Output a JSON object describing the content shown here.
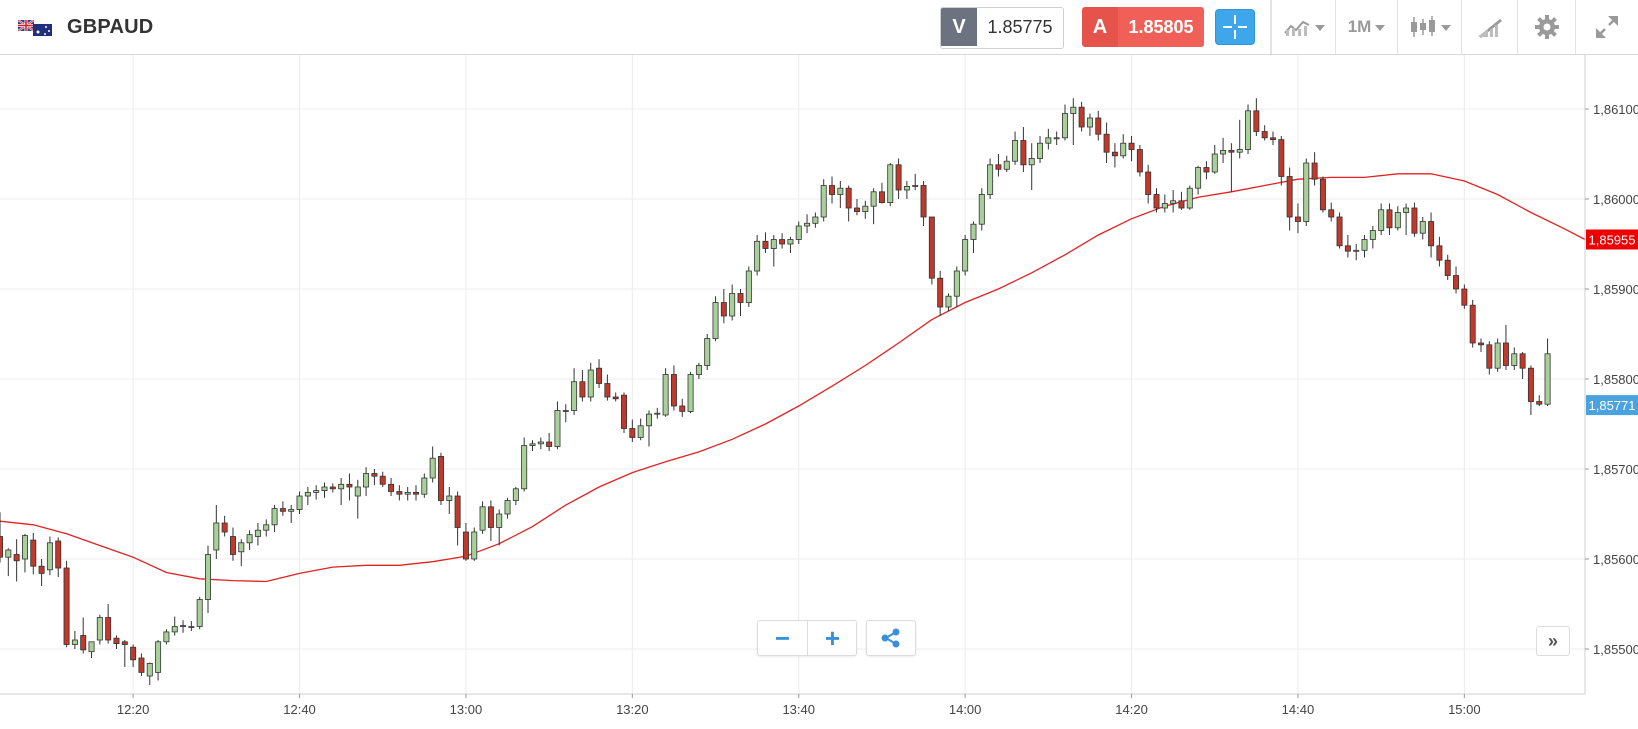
{
  "header": {
    "symbol": "GBPAUD",
    "flag_icon": "gb-au-flag-icon",
    "bid_label": "V",
    "bid_value": "1.85775",
    "ask_label": "A",
    "ask_value": "1.85805",
    "timeframe_label": "1M",
    "colors": {
      "bid": "#6d7280",
      "ask": "#e5534b",
      "crosshair": "#3ea6ea"
    }
  },
  "toolbar": {
    "icons": [
      "crosshair-icon",
      "indicators-icon",
      "chart-type-candles-icon",
      "drawing-tools-icon",
      "gear-icon",
      "fullscreen-icon"
    ]
  },
  "controls": {
    "zoom_out_label": "−",
    "zoom_in_label": "+",
    "share_icon": "share-icon",
    "scroll_latest_label": "»"
  },
  "chart_data": {
    "type": "candlestick",
    "symbol": "GBPAUD",
    "timeframe": "1M",
    "y_ticks": [
      1.855,
      1.856,
      1.857,
      1.858,
      1.859,
      1.86,
      1.861
    ],
    "y_tick_labels": [
      "1,85500",
      "1,85600",
      "1,85700",
      "1,85800",
      "1,85900",
      "1,86000",
      "1,86100"
    ],
    "ylim": [
      1.8545,
      1.8616
    ],
    "x_tick_labels": [
      {
        "label": "12:20",
        "minute": 16
      },
      {
        "label": "12:40",
        "minute": 36
      },
      {
        "label": "13:00",
        "minute": 56
      },
      {
        "label": "13:20",
        "minute": 76
      },
      {
        "label": "13:40",
        "minute": 96
      },
      {
        "label": "14:00",
        "minute": 116
      },
      {
        "label": "14:20",
        "minute": 136
      },
      {
        "label": "14:40",
        "minute": 156
      },
      {
        "label": "15:00",
        "minute": 176
      }
    ],
    "x_range": [
      0,
      190.5
    ],
    "grid": true,
    "colors": {
      "up": "#a8d19a",
      "down": "#c0392b",
      "outline": "#333333",
      "ma": "#e22222",
      "grid": "#ececec"
    },
    "candles": [
      [
        1.85625,
        1.85652,
        1.85596,
        1.85602
      ],
      [
        1.85602,
        1.85612,
        1.85581,
        1.8561
      ],
      [
        1.85605,
        1.85622,
        1.85575,
        1.85598
      ],
      [
        1.856,
        1.85628,
        1.85585,
        1.85626
      ],
      [
        1.85621,
        1.85629,
        1.85583,
        1.85592
      ],
      [
        1.85592,
        1.856,
        1.8557,
        1.85584
      ],
      [
        1.85588,
        1.85625,
        1.85582,
        1.85618
      ],
      [
        1.8562,
        1.85624,
        1.8558,
        1.8559
      ],
      [
        1.8559,
        1.85598,
        1.85502,
        1.85505
      ],
      [
        1.85505,
        1.8552,
        1.855,
        1.8551
      ],
      [
        1.85515,
        1.85535,
        1.85495,
        1.85499
      ],
      [
        1.85497,
        1.85505,
        1.8549,
        1.85508
      ],
      [
        1.8551,
        1.85538,
        1.85505,
        1.85535
      ],
      [
        1.85535,
        1.8555,
        1.85506,
        1.8551
      ],
      [
        1.85512,
        1.85515,
        1.855,
        1.85506
      ],
      [
        1.85508,
        1.8551,
        1.8548,
        1.85505
      ],
      [
        1.85502,
        1.85505,
        1.8548,
        1.85488
      ],
      [
        1.8549,
        1.85495,
        1.8547,
        1.85474
      ],
      [
        1.8547,
        1.85485,
        1.8546,
        1.85484
      ],
      [
        1.85474,
        1.8551,
        1.85465,
        1.85508
      ],
      [
        1.85508,
        1.85522,
        1.85505,
        1.85519
      ],
      [
        1.85519,
        1.85536,
        1.85515,
        1.85525
      ],
      [
        1.85525,
        1.85532,
        1.85518,
        1.85526
      ],
      [
        1.85524,
        1.85531,
        1.8552,
        1.85525
      ],
      [
        1.85525,
        1.85558,
        1.85522,
        1.85555
      ],
      [
        1.85555,
        1.85615,
        1.8554,
        1.85605
      ],
      [
        1.8561,
        1.8566,
        1.856,
        1.8564
      ],
      [
        1.8564,
        1.85648,
        1.85625,
        1.8563
      ],
      [
        1.85625,
        1.85635,
        1.85598,
        1.85605
      ],
      [
        1.85608,
        1.85622,
        1.85592,
        1.85618
      ],
      [
        1.85618,
        1.85632,
        1.8561,
        1.85627
      ],
      [
        1.85625,
        1.8564,
        1.85615,
        1.85632
      ],
      [
        1.85632,
        1.85644,
        1.85625,
        1.85638
      ],
      [
        1.85638,
        1.8566,
        1.8563,
        1.85656
      ],
      [
        1.85656,
        1.85664,
        1.85648,
        1.85653
      ],
      [
        1.85653,
        1.8566,
        1.8564,
        1.85655
      ],
      [
        1.85655,
        1.85675,
        1.8565,
        1.8567
      ],
      [
        1.8567,
        1.8568,
        1.8566,
        1.85674
      ],
      [
        1.85674,
        1.85682,
        1.85666,
        1.85676
      ],
      [
        1.85676,
        1.85685,
        1.85668,
        1.8568
      ],
      [
        1.8568,
        1.85684,
        1.85674,
        1.85678
      ],
      [
        1.85678,
        1.8569,
        1.8566,
        1.85683
      ],
      [
        1.85683,
        1.85695,
        1.85665,
        1.8568
      ],
      [
        1.8567,
        1.85688,
        1.85645,
        1.8568
      ],
      [
        1.8568,
        1.85702,
        1.8567,
        1.85695
      ],
      [
        1.85695,
        1.857,
        1.85682,
        1.85692
      ],
      [
        1.85692,
        1.85697,
        1.8568,
        1.85683
      ],
      [
        1.85683,
        1.8569,
        1.8567,
        1.85675
      ],
      [
        1.85675,
        1.85682,
        1.85665,
        1.85672
      ],
      [
        1.85672,
        1.8568,
        1.85665,
        1.85674
      ],
      [
        1.85674,
        1.85682,
        1.85665,
        1.85672
      ],
      [
        1.85672,
        1.85695,
        1.85668,
        1.8569
      ],
      [
        1.8569,
        1.85725,
        1.85685,
        1.85712
      ],
      [
        1.85714,
        1.85718,
        1.8566,
        1.85665
      ],
      [
        1.85665,
        1.8568,
        1.8565,
        1.8567
      ],
      [
        1.8567,
        1.85675,
        1.85615,
        1.85635
      ],
      [
        1.8563,
        1.8564,
        1.85598,
        1.856
      ],
      [
        1.856,
        1.85635,
        1.85598,
        1.8563
      ],
      [
        1.85632,
        1.85664,
        1.85628,
        1.85658
      ],
      [
        1.85658,
        1.85665,
        1.8562,
        1.85635
      ],
      [
        1.85635,
        1.85655,
        1.85615,
        1.8565
      ],
      [
        1.8565,
        1.85668,
        1.85645,
        1.85665
      ],
      [
        1.85665,
        1.8568,
        1.8566,
        1.85678
      ],
      [
        1.85678,
        1.85735,
        1.85675,
        1.85726
      ],
      [
        1.85726,
        1.85732,
        1.8572,
        1.85728
      ],
      [
        1.85728,
        1.85735,
        1.85722,
        1.8573
      ],
      [
        1.8573,
        1.8574,
        1.8572,
        1.85725
      ],
      [
        1.85725,
        1.85775,
        1.85722,
        1.85765
      ],
      [
        1.85765,
        1.85772,
        1.85752,
        1.85765
      ],
      [
        1.85765,
        1.85812,
        1.8576,
        1.85797
      ],
      [
        1.85797,
        1.8581,
        1.85775,
        1.8578
      ],
      [
        1.8578,
        1.85818,
        1.85775,
        1.8581
      ],
      [
        1.85812,
        1.85822,
        1.8579,
        1.85795
      ],
      [
        1.85795,
        1.85805,
        1.85776,
        1.8578
      ],
      [
        1.8578,
        1.85785,
        1.85775,
        1.85778
      ],
      [
        1.85782,
        1.85785,
        1.8574,
        1.85745
      ],
      [
        1.85745,
        1.85755,
        1.8573,
        1.85735
      ],
      [
        1.85735,
        1.85756,
        1.85732,
        1.85748
      ],
      [
        1.85748,
        1.85765,
        1.85725,
        1.85761
      ],
      [
        1.85761,
        1.85768,
        1.85756,
        1.85762
      ],
      [
        1.8576,
        1.85812,
        1.85758,
        1.85805
      ],
      [
        1.85805,
        1.85815,
        1.85765,
        1.8577
      ],
      [
        1.8577,
        1.85778,
        1.85758,
        1.85764
      ],
      [
        1.85764,
        1.85808,
        1.85762,
        1.85805
      ],
      [
        1.85805,
        1.85818,
        1.858,
        1.85815
      ],
      [
        1.85815,
        1.8585,
        1.8581,
        1.85845
      ],
      [
        1.85845,
        1.85892,
        1.85842,
        1.85885
      ],
      [
        1.85885,
        1.859,
        1.85862,
        1.8587
      ],
      [
        1.8587,
        1.85905,
        1.85865,
        1.85895
      ],
      [
        1.85895,
        1.859,
        1.8587,
        1.85885
      ],
      [
        1.85885,
        1.85925,
        1.8588,
        1.8592
      ],
      [
        1.8592,
        1.8596,
        1.85915,
        1.85953
      ],
      [
        1.85953,
        1.85963,
        1.8594,
        1.85945
      ],
      [
        1.85945,
        1.8596,
        1.85925,
        1.85955
      ],
      [
        1.85955,
        1.85962,
        1.85945,
        1.8595
      ],
      [
        1.8595,
        1.85958,
        1.8594,
        1.85955
      ],
      [
        1.85955,
        1.85975,
        1.8595,
        1.8597
      ],
      [
        1.8597,
        1.85983,
        1.85962,
        1.85973
      ],
      [
        1.85973,
        1.85985,
        1.85968,
        1.8598
      ],
      [
        1.8598,
        1.86022,
        1.85975,
        1.86015
      ],
      [
        1.86015,
        1.86025,
        1.85995,
        1.86005
      ],
      [
        1.86005,
        1.8602,
        1.8599,
        1.86012
      ],
      [
        1.86012,
        1.86015,
        1.85975,
        1.8599
      ],
      [
        1.8599,
        1.86,
        1.85982,
        1.85986
      ],
      [
        1.85986,
        1.85998,
        1.85978,
        1.85992
      ],
      [
        1.85992,
        1.86012,
        1.85972,
        1.86008
      ],
      [
        1.86008,
        1.86018,
        1.85995,
        1.85996
      ],
      [
        1.85996,
        1.8604,
        1.85992,
        1.86038
      ],
      [
        1.86038,
        1.86045,
        1.86,
        1.8601
      ],
      [
        1.8601,
        1.8602,
        1.86,
        1.86014
      ],
      [
        1.86014,
        1.86028,
        1.8601,
        1.86015
      ],
      [
        1.86015,
        1.8602,
        1.8597,
        1.8598
      ],
      [
        1.8598,
        1.85975,
        1.85905,
        1.85912
      ],
      [
        1.85912,
        1.8592,
        1.8587,
        1.8588
      ],
      [
        1.8588,
        1.85895,
        1.85875,
        1.85892
      ],
      [
        1.85892,
        1.85925,
        1.8588,
        1.8592
      ],
      [
        1.8592,
        1.8596,
        1.85915,
        1.85955
      ],
      [
        1.85955,
        1.85975,
        1.8594,
        1.85972
      ],
      [
        1.85972,
        1.86012,
        1.85965,
        1.86005
      ],
      [
        1.86005,
        1.86045,
        1.86,
        1.86038
      ],
      [
        1.86038,
        1.8605,
        1.86025,
        1.86033
      ],
      [
        1.86033,
        1.86048,
        1.8603,
        1.86042
      ],
      [
        1.86042,
        1.86075,
        1.86038,
        1.86065
      ],
      [
        1.86065,
        1.8608,
        1.8603,
        1.86038
      ],
      [
        1.86038,
        1.86062,
        1.8601,
        1.86045
      ],
      [
        1.86045,
        1.8607,
        1.8604,
        1.86062
      ],
      [
        1.86062,
        1.86078,
        1.86055,
        1.86068
      ],
      [
        1.86068,
        1.86075,
        1.8606,
        1.86068
      ],
      [
        1.86068,
        1.86105,
        1.86065,
        1.86095
      ],
      [
        1.86095,
        1.86112,
        1.8606,
        1.86102
      ],
      [
        1.86102,
        1.86108,
        1.86075,
        1.8608
      ],
      [
        1.8608,
        1.86095,
        1.8607,
        1.8609
      ],
      [
        1.8609,
        1.86098,
        1.86065,
        1.86072
      ],
      [
        1.86072,
        1.86085,
        1.8604,
        1.86052
      ],
      [
        1.86052,
        1.86062,
        1.86035,
        1.86048
      ],
      [
        1.86048,
        1.86072,
        1.86045,
        1.86062
      ],
      [
        1.86062,
        1.8607,
        1.86042,
        1.86055
      ],
      [
        1.86055,
        1.8606,
        1.86025,
        1.8603
      ],
      [
        1.8603,
        1.86038,
        1.85995,
        1.86005
      ],
      [
        1.86005,
        1.86012,
        1.85985,
        1.8599
      ],
      [
        1.8599,
        1.86005,
        1.85985,
        1.85995
      ],
      [
        1.85995,
        1.8601,
        1.85985,
        1.85998
      ],
      [
        1.85998,
        1.86008,
        1.85988,
        1.8599
      ],
      [
        1.8599,
        1.86015,
        1.85988,
        1.86012
      ],
      [
        1.86012,
        1.86037,
        1.86005,
        1.86035
      ],
      [
        1.86035,
        1.86042,
        1.86022,
        1.8603
      ],
      [
        1.8603,
        1.8606,
        1.86028,
        1.8605
      ],
      [
        1.8605,
        1.86068,
        1.8604,
        1.86054
      ],
      [
        1.86054,
        1.86062,
        1.86008,
        1.86052
      ],
      [
        1.86052,
        1.86088,
        1.86045,
        1.86055
      ],
      [
        1.86055,
        1.86105,
        1.8605,
        1.86098
      ],
      [
        1.86098,
        1.86112,
        1.8607,
        1.86075
      ],
      [
        1.86075,
        1.86082,
        1.86065,
        1.86068
      ],
      [
        1.86068,
        1.86075,
        1.8606,
        1.86066
      ],
      [
        1.86066,
        1.8607,
        1.86015,
        1.86025
      ],
      [
        1.86025,
        1.86035,
        1.85965,
        1.8598
      ],
      [
        1.8598,
        1.85995,
        1.85962,
        1.85975
      ],
      [
        1.85975,
        1.86045,
        1.8597,
        1.8604
      ],
      [
        1.8604,
        1.86052,
        1.86015,
        1.86022
      ],
      [
        1.86022,
        1.86025,
        1.85985,
        1.85988
      ],
      [
        1.85988,
        1.85996,
        1.85975,
        1.8598
      ],
      [
        1.8598,
        1.85985,
        1.85945,
        1.85948
      ],
      [
        1.85948,
        1.8596,
        1.85935,
        1.85942
      ],
      [
        1.85942,
        1.8595,
        1.85932,
        1.85943
      ],
      [
        1.85943,
        1.8596,
        1.85935,
        1.85955
      ],
      [
        1.85955,
        1.8597,
        1.85945,
        1.85965
      ],
      [
        1.85965,
        1.85995,
        1.8596,
        1.85988
      ],
      [
        1.85988,
        1.85995,
        1.8596,
        1.85968
      ],
      [
        1.85968,
        1.85992,
        1.85965,
        1.85985
      ],
      [
        1.85985,
        1.85995,
        1.8596,
        1.8599
      ],
      [
        1.8599,
        1.85996,
        1.85958,
        1.85962
      ],
      [
        1.85962,
        1.8598,
        1.85955,
        1.85975
      ],
      [
        1.85975,
        1.85985,
        1.85935,
        1.85948
      ],
      [
        1.85948,
        1.85958,
        1.85925,
        1.85932
      ],
      [
        1.85932,
        1.85938,
        1.8591,
        1.85915
      ],
      [
        1.85915,
        1.85925,
        1.85895,
        1.859
      ],
      [
        1.859,
        1.85905,
        1.85878,
        1.85882
      ],
      [
        1.85882,
        1.85888,
        1.85835,
        1.8584
      ],
      [
        1.8584,
        1.85845,
        1.8583,
        1.85838
      ],
      [
        1.85838,
        1.85842,
        1.85805,
        1.85812
      ],
      [
        1.85812,
        1.85845,
        1.85808,
        1.8584
      ],
      [
        1.8584,
        1.8586,
        1.8581,
        1.85815
      ],
      [
        1.85815,
        1.85835,
        1.8581,
        1.85828
      ],
      [
        1.85828,
        1.8583,
        1.858,
        1.85812
      ],
      [
        1.85812,
        1.85815,
        1.8576,
        1.85775
      ],
      [
        1.85775,
        1.85782,
        1.8577,
        1.85772
      ],
      [
        1.85772,
        1.85845,
        1.8577,
        1.85828
      ]
    ],
    "ma": [
      [
        0,
        1.85642
      ],
      [
        4,
        1.85638
      ],
      [
        8,
        1.85628
      ],
      [
        12,
        1.85615
      ],
      [
        16,
        1.85602
      ],
      [
        20,
        1.85585
      ],
      [
        24,
        1.85578
      ],
      [
        28,
        1.85576
      ],
      [
        32,
        1.85575
      ],
      [
        36,
        1.85584
      ],
      [
        40,
        1.85591
      ],
      [
        44,
        1.85593
      ],
      [
        48,
        1.85593
      ],
      [
        52,
        1.85597
      ],
      [
        56,
        1.85603
      ],
      [
        60,
        1.85617
      ],
      [
        64,
        1.85636
      ],
      [
        68,
        1.8566
      ],
      [
        72,
        1.8568
      ],
      [
        76,
        1.85696
      ],
      [
        80,
        1.85708
      ],
      [
        84,
        1.85719
      ],
      [
        88,
        1.85733
      ],
      [
        92,
        1.8575
      ],
      [
        96,
        1.8577
      ],
      [
        100,
        1.85792
      ],
      [
        104,
        1.85815
      ],
      [
        108,
        1.8584
      ],
      [
        112,
        1.85866
      ],
      [
        116,
        1.85885
      ],
      [
        120,
        1.859
      ],
      [
        124,
        1.85918
      ],
      [
        128,
        1.85938
      ],
      [
        132,
        1.8596
      ],
      [
        136,
        1.85978
      ],
      [
        140,
        1.85992
      ],
      [
        144,
        1.86002
      ],
      [
        148,
        1.86008
      ],
      [
        152,
        1.86015
      ],
      [
        156,
        1.86022
      ],
      [
        160,
        1.86024
      ],
      [
        164,
        1.86024
      ],
      [
        168,
        1.86028
      ],
      [
        172,
        1.86028
      ],
      [
        176,
        1.8602
      ],
      [
        180,
        1.86005
      ],
      [
        184,
        1.85985
      ],
      [
        188,
        1.85967
      ],
      [
        190.5,
        1.85955
      ]
    ],
    "current_tags": [
      {
        "label": "1,85955",
        "value": 1.85955,
        "color": "#ee0000"
      },
      {
        "label": "1,85771",
        "value": 1.85771,
        "color": "#4aa3df"
      }
    ]
  }
}
